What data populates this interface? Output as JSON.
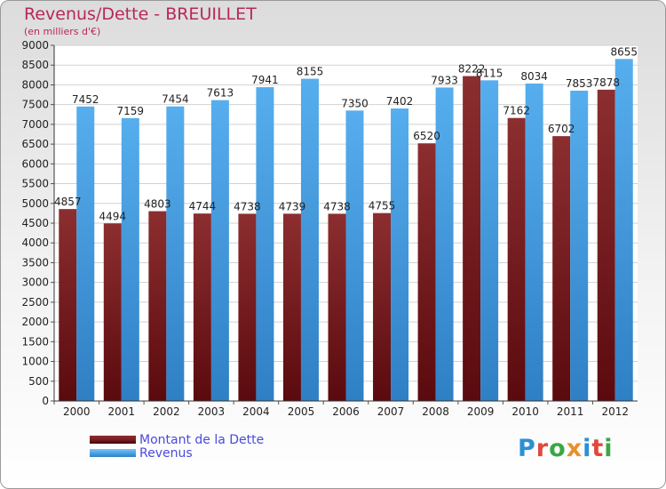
{
  "title": "Revenus/Dette - BREUILLET",
  "subtitle": "(en milliers d'€)",
  "legend": {
    "dette_label": "Montant de la Dette",
    "revenus_label": "Revenus"
  },
  "logo": {
    "text": "Proxiti",
    "letter_colors": [
      "#2c8fd6",
      "#e0483c",
      "#38a845",
      "#e8902c",
      "#2c8fd6",
      "#e0483c",
      "#38a845"
    ]
  },
  "colors": {
    "dette": "#7a1e22",
    "revenus": "#4aa4e6"
  },
  "chart_data": {
    "type": "bar",
    "categories": [
      "2000",
      "2001",
      "2002",
      "2003",
      "2004",
      "2005",
      "2006",
      "2007",
      "2008",
      "2009",
      "2010",
      "2011",
      "2012"
    ],
    "series": [
      {
        "name": "Montant de la Dette",
        "values": [
          4857,
          4494,
          4803,
          4744,
          4738,
          4739,
          4738,
          4755,
          6520,
          8222,
          7162,
          6702,
          7878
        ]
      },
      {
        "name": "Revenus",
        "values": [
          7452,
          7159,
          7454,
          7613,
          7941,
          8155,
          7350,
          7402,
          7933,
          8115,
          8034,
          7853,
          8655
        ]
      }
    ],
    "yticks": [
      "0",
      "500",
      "1000",
      "1500",
      "2000",
      "2500",
      "3000",
      "3500",
      "4000",
      "4500",
      "5000",
      "5500",
      "6000",
      "6500",
      "7000",
      "7500",
      "8000",
      "8500",
      "9000"
    ],
    "ylim": [
      0,
      9000
    ],
    "ystep": 500,
    "grid": true
  }
}
